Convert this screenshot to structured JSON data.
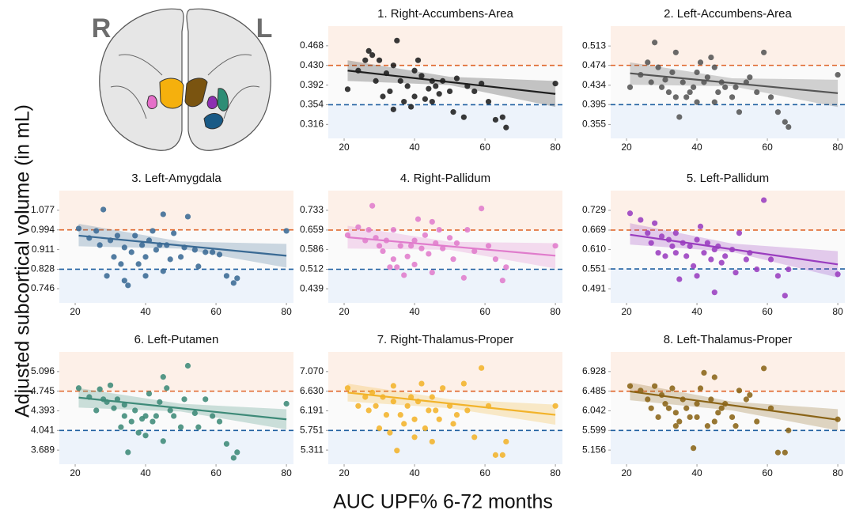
{
  "figure": {
    "y_label": "Adjusted subcortical volume (in mL)",
    "x_label": "AUC UPF% 6-72 months",
    "brain_labels": [
      "R",
      "L"
    ]
  },
  "chart_data": [
    {
      "type": "scatter",
      "title": "1. Right-Accumbens-Area",
      "color": "#1e1e1e",
      "xlim": [
        15.5,
        82
      ],
      "xticks": [
        20,
        40,
        60,
        80
      ],
      "ylim": [
        0.289,
        0.506
      ],
      "yticks": [
        0.468,
        {
          "value": 0.43,
          "label": "0.430"
        },
        0.392,
        0.354,
        0.316
      ],
      "thresholds": [
        0.43,
        0.354
      ],
      "threshold_colors": [
        "#e0662a",
        "#1f5fa0"
      ],
      "shade_colors": [
        "#fdf0e8",
        "#edf3fb"
      ],
      "x": [
        21,
        24,
        26,
        27,
        28,
        29,
        30,
        31,
        32,
        33,
        34,
        34,
        35,
        36,
        37,
        38,
        39,
        40,
        40,
        41,
        42,
        43,
        44,
        45,
        45,
        46,
        47,
        48,
        50,
        51,
        52,
        54,
        55,
        57,
        59,
        61,
        63,
        65,
        66,
        80
      ],
      "values": [
        0.384,
        0.42,
        0.44,
        0.458,
        0.45,
        0.4,
        0.44,
        0.37,
        0.415,
        0.38,
        0.345,
        0.43,
        0.478,
        0.4,
        0.36,
        0.39,
        0.35,
        0.42,
        0.37,
        0.44,
        0.41,
        0.365,
        0.385,
        0.4,
        0.36,
        0.39,
        0.375,
        0.4,
        0.38,
        0.34,
        0.405,
        0.33,
        0.39,
        0.38,
        0.395,
        0.36,
        0.325,
        0.33,
        0.31,
        0.395
      ],
      "fit_x": [
        21,
        80
      ],
      "fit_y": [
        0.42,
        0.375
      ],
      "band_x": [
        21,
        50,
        80
      ],
      "band_lower": [
        0.4,
        0.392,
        0.35
      ],
      "band_upper": [
        0.44,
        0.408,
        0.4
      ]
    },
    {
      "type": "scatter",
      "title": "2. Left-Accumbens-Area",
      "color": "#555555",
      "xlim": [
        15.5,
        82
      ],
      "xticks": [
        20,
        40,
        60,
        80
      ],
      "ylim": [
        0.327,
        0.553
      ],
      "yticks": [
        0.513,
        0.474,
        0.434,
        0.395,
        0.355
      ],
      "thresholds": [
        0.474,
        0.395
      ],
      "threshold_colors": [
        "#e0662a",
        "#1f5fa0"
      ],
      "shade_colors": [
        "#fdf0e8",
        "#edf3fb"
      ],
      "x": [
        21,
        24,
        26,
        27,
        28,
        29,
        30,
        31,
        32,
        33,
        34,
        34,
        35,
        36,
        37,
        38,
        39,
        40,
        40,
        41,
        42,
        43,
        44,
        45,
        45,
        46,
        47,
        48,
        50,
        51,
        52,
        54,
        55,
        57,
        59,
        61,
        63,
        65,
        66,
        80
      ],
      "values": [
        0.43,
        0.455,
        0.48,
        0.44,
        0.52,
        0.47,
        0.43,
        0.445,
        0.42,
        0.46,
        0.41,
        0.5,
        0.37,
        0.44,
        0.41,
        0.42,
        0.43,
        0.4,
        0.46,
        0.48,
        0.44,
        0.45,
        0.49,
        0.47,
        0.4,
        0.42,
        0.44,
        0.43,
        0.41,
        0.43,
        0.38,
        0.44,
        0.45,
        0.42,
        0.5,
        0.41,
        0.38,
        0.36,
        0.35,
        0.455
      ],
      "fit_x": [
        21,
        80
      ],
      "fit_y": [
        0.458,
        0.418
      ],
      "band_x": [
        21,
        50,
        80
      ],
      "band_lower": [
        0.435,
        0.432,
        0.39
      ],
      "band_upper": [
        0.48,
        0.448,
        0.445
      ]
    },
    {
      "type": "scatter",
      "title": "3. Left-Amygdala",
      "color": "#3a6a94",
      "xlim": [
        15.5,
        82
      ],
      "xticks": [
        20,
        40,
        60,
        80
      ],
      "ylim": [
        0.686,
        1.16
      ],
      "yticks": [
        1.077,
        0.994,
        0.911,
        0.828,
        0.746
      ],
      "thresholds": [
        0.994,
        0.828
      ],
      "threshold_colors": [
        "#e0662a",
        "#1f5fa0"
      ],
      "shade_colors": [
        "#fdf0e8",
        "#edf3fb"
      ],
      "x": [
        21,
        24,
        26,
        27,
        28,
        29,
        30,
        31,
        32,
        33,
        34,
        34,
        35,
        36,
        37,
        38,
        39,
        40,
        40,
        41,
        42,
        43,
        44,
        45,
        45,
        46,
        47,
        48,
        50,
        51,
        52,
        54,
        55,
        57,
        59,
        61,
        63,
        65,
        66,
        80
      ],
      "values": [
        1.0,
        0.96,
        0.99,
        0.93,
        1.08,
        0.8,
        0.95,
        0.88,
        0.97,
        0.85,
        0.78,
        0.92,
        0.76,
        0.9,
        0.97,
        0.85,
        0.93,
        0.88,
        0.8,
        0.95,
        0.99,
        0.91,
        0.93,
        1.06,
        0.82,
        0.93,
        0.87,
        0.98,
        0.88,
        0.92,
        1.05,
        0.91,
        0.84,
        0.9,
        0.9,
        0.89,
        0.8,
        0.77,
        0.79,
        0.99
      ],
      "fit_x": [
        21,
        80
      ],
      "fit_y": [
        0.97,
        0.885
      ],
      "band_x": [
        21,
        50,
        80
      ],
      "band_lower": [
        0.925,
        0.915,
        0.835
      ],
      "band_upper": [
        1.02,
        0.945,
        0.935
      ]
    },
    {
      "type": "scatter",
      "title": "4. Right-Pallidum",
      "color": "#e07ccc",
      "xlim": [
        15.5,
        82
      ],
      "xticks": [
        20,
        40,
        60,
        80
      ],
      "ylim": [
        0.386,
        0.807
      ],
      "yticks": [
        0.733,
        0.659,
        0.586,
        0.512,
        0.439
      ],
      "thresholds": [
        0.659,
        0.512
      ],
      "threshold_colors": [
        "#e0662a",
        "#1f5fa0"
      ],
      "shade_colors": [
        "#fdf0e8",
        "#edf3fb"
      ],
      "x": [
        21,
        24,
        26,
        27,
        28,
        29,
        30,
        31,
        32,
        33,
        34,
        34,
        35,
        36,
        37,
        38,
        39,
        40,
        40,
        41,
        42,
        43,
        44,
        45,
        45,
        46,
        47,
        48,
        50,
        51,
        52,
        54,
        55,
        57,
        59,
        61,
        63,
        65,
        66,
        80
      ],
      "values": [
        0.64,
        0.67,
        0.62,
        0.66,
        0.75,
        0.63,
        0.6,
        0.58,
        0.62,
        0.52,
        0.55,
        0.66,
        0.52,
        0.6,
        0.49,
        0.56,
        0.6,
        0.62,
        0.53,
        0.7,
        0.59,
        0.64,
        0.57,
        0.69,
        0.5,
        0.61,
        0.66,
        0.59,
        0.63,
        0.55,
        0.61,
        0.48,
        0.66,
        0.58,
        0.74,
        0.6,
        0.55,
        0.47,
        0.52,
        0.6
      ],
      "fit_x": [
        21,
        80
      ],
      "fit_y": [
        0.632,
        0.563
      ],
      "band_x": [
        21,
        50,
        80
      ],
      "band_lower": [
        0.59,
        0.585,
        0.515
      ],
      "band_upper": [
        0.675,
        0.615,
        0.61
      ]
    },
    {
      "type": "scatter",
      "title": "5. Left-Pallidum",
      "color": "#9a3dbf",
      "xlim": [
        15.5,
        82
      ],
      "xticks": [
        20,
        40,
        60,
        80
      ],
      "ylim": [
        0.448,
        0.789
      ],
      "yticks": [
        0.729,
        0.669,
        {
          "value": 0.61,
          "label": "0.610"
        },
        0.551,
        0.491
      ],
      "thresholds": [
        0.669,
        0.551
      ],
      "threshold_colors": [
        "#e0662a",
        "#1f5fa0"
      ],
      "shade_colors": [
        "#fdf0e8",
        "#edf3fb"
      ],
      "x": [
        21,
        24,
        26,
        27,
        28,
        29,
        30,
        31,
        32,
        33,
        34,
        34,
        35,
        36,
        37,
        38,
        39,
        40,
        40,
        41,
        42,
        43,
        44,
        45,
        45,
        46,
        47,
        48,
        50,
        51,
        52,
        54,
        55,
        57,
        59,
        61,
        63,
        65,
        66,
        80
      ],
      "values": [
        0.72,
        0.7,
        0.66,
        0.63,
        0.69,
        0.6,
        0.65,
        0.59,
        0.64,
        0.62,
        0.6,
        0.66,
        0.52,
        0.63,
        0.59,
        0.62,
        0.56,
        0.64,
        0.53,
        0.68,
        0.6,
        0.63,
        0.58,
        0.61,
        0.48,
        0.62,
        0.57,
        0.59,
        0.61,
        0.54,
        0.66,
        0.58,
        0.6,
        0.55,
        0.76,
        0.58,
        0.53,
        0.47,
        0.55,
        0.535
      ],
      "fit_x": [
        21,
        80
      ],
      "fit_y": [
        0.655,
        0.565
      ],
      "band_x": [
        21,
        50,
        80
      ],
      "band_lower": [
        0.625,
        0.603,
        0.525
      ],
      "band_upper": [
        0.69,
        0.628,
        0.605
      ]
    },
    {
      "type": "scatter",
      "title": "6. Left-Putamen",
      "color": "#3d8a78",
      "xlim": [
        15.5,
        82
      ],
      "xticks": [
        20,
        40,
        60,
        80
      ],
      "ylim": [
        3.436,
        5.448
      ],
      "yticks": [
        5.096,
        4.745,
        4.393,
        4.041,
        3.689
      ],
      "thresholds": [
        4.745,
        4.041
      ],
      "threshold_colors": [
        "#e0662a",
        "#1f5fa0"
      ],
      "shade_colors": [
        "#fdf0e8",
        "#edf3fb"
      ],
      "x": [
        21,
        24,
        26,
        27,
        28,
        29,
        30,
        31,
        32,
        33,
        34,
        34,
        35,
        36,
        37,
        38,
        39,
        40,
        40,
        41,
        42,
        43,
        44,
        45,
        45,
        46,
        47,
        48,
        50,
        51,
        52,
        54,
        55,
        57,
        59,
        61,
        63,
        65,
        66,
        80
      ],
      "values": [
        4.8,
        4.64,
        4.4,
        4.78,
        4.6,
        4.55,
        4.85,
        4.44,
        4.6,
        4.1,
        4.3,
        4.5,
        3.65,
        4.2,
        4.4,
        4.0,
        4.25,
        4.3,
        3.95,
        4.7,
        4.2,
        4.3,
        4.55,
        5.0,
        3.85,
        4.8,
        4.4,
        4.3,
        4.1,
        4.6,
        5.2,
        4.35,
        4.1,
        4.6,
        4.3,
        4.2,
        3.8,
        3.55,
        3.65,
        4.52
      ],
      "fit_x": [
        21,
        80
      ],
      "fit_y": [
        4.63,
        4.24
      ],
      "band_x": [
        21,
        50,
        80
      ],
      "band_lower": [
        4.45,
        4.38,
        4.06
      ],
      "band_upper": [
        4.8,
        4.52,
        4.42
      ]
    },
    {
      "type": "scatter",
      "title": "7. Right-Thalamus-Proper",
      "color": "#f2b32a",
      "xlim": [
        15.5,
        82
      ],
      "xticks": [
        20,
        40,
        60,
        80
      ],
      "ylim": [
        4.994,
        7.51
      ],
      "yticks": [
        {
          "value": 7.07,
          "label": "7.070"
        },
        {
          "value": 6.63,
          "label": "6.630"
        },
        6.191,
        5.751,
        5.311
      ],
      "thresholds": [
        6.63,
        5.751
      ],
      "threshold_colors": [
        "#e0662a",
        "#1f5fa0"
      ],
      "shade_colors": [
        "#fdf0e8",
        "#edf3fb"
      ],
      "x": [
        21,
        24,
        26,
        27,
        28,
        29,
        30,
        31,
        32,
        33,
        34,
        34,
        35,
        36,
        37,
        38,
        39,
        40,
        40,
        41,
        42,
        43,
        44,
        45,
        45,
        46,
        47,
        48,
        50,
        51,
        52,
        54,
        55,
        57,
        59,
        61,
        63,
        65,
        66,
        80
      ],
      "values": [
        6.7,
        6.3,
        6.5,
        6.2,
        6.6,
        6.3,
        5.8,
        6.5,
        6.1,
        5.7,
        6.4,
        6.75,
        5.3,
        6.1,
        5.9,
        6.3,
        6.5,
        6.0,
        5.6,
        6.4,
        6.8,
        5.8,
        6.2,
        6.5,
        5.5,
        6.2,
        6.0,
        6.7,
        6.3,
        5.9,
        6.1,
        6.8,
        6.2,
        5.6,
        7.15,
        6.3,
        5.2,
        5.2,
        5.5,
        6.3
      ],
      "fit_x": [
        21,
        80
      ],
      "fit_y": [
        6.6,
        6.1
      ],
      "band_x": [
        21,
        50,
        80
      ],
      "band_lower": [
        6.4,
        6.25,
        5.88
      ],
      "band_upper": [
        6.8,
        6.45,
        6.33
      ]
    },
    {
      "type": "scatter",
      "title": "8. Left-Thalamus-Proper",
      "color": "#8a6417",
      "xlim": [
        15.5,
        82
      ],
      "xticks": [
        20,
        40,
        60,
        80
      ],
      "ylim": [
        4.837,
        7.371
      ],
      "yticks": [
        6.928,
        6.485,
        6.042,
        5.599,
        5.156
      ],
      "thresholds": [
        6.485,
        5.599
      ],
      "threshold_colors": [
        "#e0662a",
        "#1f5fa0"
      ],
      "shade_colors": [
        "#fdf0e8",
        "#edf3fb"
      ],
      "x": [
        21,
        24,
        26,
        27,
        28,
        29,
        30,
        31,
        32,
        33,
        34,
        34,
        35,
        36,
        37,
        38,
        39,
        40,
        40,
        41,
        42,
        43,
        44,
        45,
        45,
        46,
        47,
        48,
        50,
        51,
        52,
        54,
        55,
        57,
        59,
        61,
        63,
        65,
        66,
        80
      ],
      "values": [
        6.6,
        6.5,
        6.3,
        6.1,
        6.6,
        5.9,
        6.4,
        6.2,
        6.1,
        6.55,
        5.7,
        6.0,
        5.8,
        6.3,
        6.1,
        5.9,
        5.2,
        6.2,
        5.9,
        6.55,
        6.9,
        5.7,
        6.3,
        6.8,
        5.8,
        6.0,
        6.1,
        6.2,
        5.9,
        5.7,
        6.5,
        6.3,
        6.4,
        5.8,
        7.0,
        6.1,
        5.1,
        5.1,
        5.6,
        5.85
      ],
      "fit_x": [
        21,
        80
      ],
      "fit_y": [
        6.48,
        5.84
      ],
      "band_x": [
        21,
        50,
        80
      ],
      "band_lower": [
        6.28,
        6.05,
        5.6
      ],
      "band_upper": [
        6.68,
        6.25,
        6.08
      ]
    }
  ]
}
